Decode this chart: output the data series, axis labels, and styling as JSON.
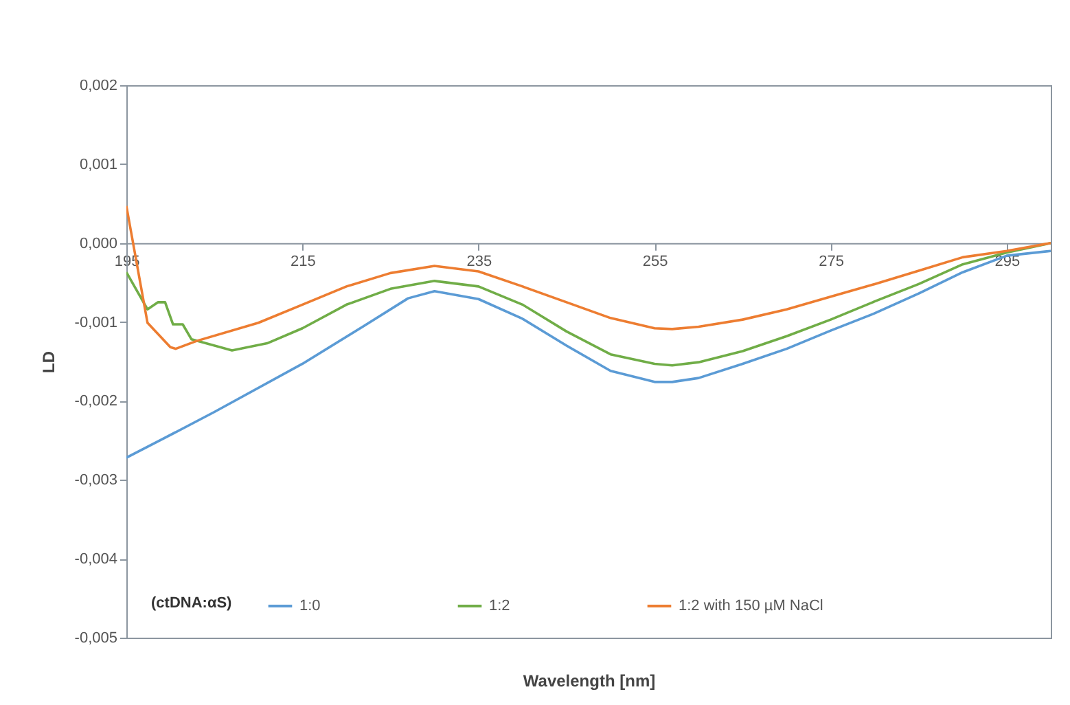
{
  "chart_data": {
    "type": "line",
    "xlabel": "Wavelength [nm]",
    "ylabel": "LD",
    "legend_title": "(ctDNA:αS)",
    "legend": "bottom",
    "grid": false,
    "xlim": [
      195,
      300
    ],
    "ylim": [
      -0.005,
      0.002
    ],
    "xticks": [
      195,
      215,
      235,
      255,
      275,
      295
    ],
    "yticks": [
      {
        "value": 0.002,
        "label": "0,002"
      },
      {
        "value": 0.001,
        "label": "0,001"
      },
      {
        "value": 0,
        "label": "0,000"
      },
      {
        "value": -0.001,
        "label": "-0,001"
      },
      {
        "value": -0.002,
        "label": "-0,002"
      },
      {
        "value": -0.003,
        "label": "-0,003"
      },
      {
        "value": -0.004,
        "label": "-0,004"
      },
      {
        "value": -0.005,
        "label": "-0,005"
      }
    ],
    "series": [
      {
        "name": "1:0",
        "color": "#5b9bd5",
        "x": [
          195,
          199,
          205,
          215,
          222,
          227,
          230,
          235,
          240,
          245,
          250,
          255,
          257,
          260,
          265,
          270,
          275,
          280,
          285,
          290,
          295,
          300
        ],
        "values": [
          -0.00272,
          -0.00249,
          -0.00214,
          -0.00153,
          -0.00105,
          -0.0007,
          -0.00061,
          -0.00071,
          -0.00096,
          -0.0013,
          -0.00162,
          -0.00176,
          -0.00176,
          -0.00171,
          -0.00153,
          -0.00134,
          -0.00111,
          -0.00089,
          -0.00064,
          -0.00037,
          -0.00016,
          -0.0001
        ]
      },
      {
        "name": "1:2",
        "color": "#70ad47",
        "x": [
          195,
          197.4,
          198.6,
          199.4,
          200.3,
          201.4,
          202.4,
          207,
          211,
          215,
          220,
          225,
          230,
          235,
          240,
          245,
          250,
          255,
          257,
          260,
          265,
          270,
          275,
          280,
          285,
          290,
          295,
          300
        ],
        "values": [
          -0.00037,
          -0.00084,
          -0.00075,
          -0.00075,
          -0.00103,
          -0.00103,
          -0.00122,
          -0.00136,
          -0.00127,
          -0.00108,
          -0.00078,
          -0.00058,
          -0.00048,
          -0.00055,
          -0.00078,
          -0.00112,
          -0.00141,
          -0.00153,
          -0.00155,
          -0.00151,
          -0.00137,
          -0.00118,
          -0.00097,
          -0.00074,
          -0.00052,
          -0.00027,
          -0.00012,
          0
        ]
      },
      {
        "name": "1:2 with 150 µM NaCl",
        "color": "#ed7d31",
        "x": [
          195,
          197.4,
          200,
          200.6,
          203,
          210,
          215,
          220,
          225,
          230,
          235,
          240,
          245,
          250,
          255,
          257,
          260,
          265,
          270,
          275,
          280,
          285,
          290,
          295,
          300
        ],
        "values": [
          0.00047,
          -0.00101,
          -0.00132,
          -0.00134,
          -0.00124,
          -0.00101,
          -0.00078,
          -0.00055,
          -0.00038,
          -0.00029,
          -0.00036,
          -0.00055,
          -0.00075,
          -0.00095,
          -0.00108,
          -0.00109,
          -0.00106,
          -0.00097,
          -0.00084,
          -0.00068,
          -0.00052,
          -0.00035,
          -0.00018,
          -0.0001,
          0
        ]
      }
    ]
  }
}
